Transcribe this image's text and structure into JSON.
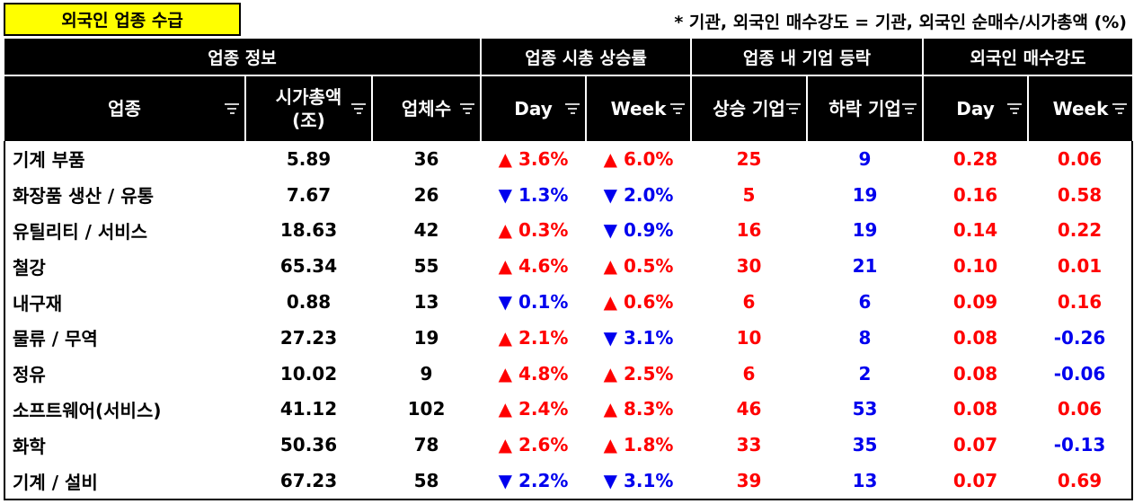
{
  "title": "외국인 업종 수급",
  "note": "* 기관, 외국인 매수강도 = 기관, 외국인 순매수/시가총액 (%)",
  "group_headers": [
    "업종 정보",
    "업종 시총 상승률",
    "업종 내 기업 등락",
    "외국인 매수강도"
  ],
  "column_headers": [
    "업종",
    "시가총액\n(조)",
    "업체수",
    "Day",
    "Week",
    "상승 기업",
    "하락 기업",
    "Day",
    "Week"
  ],
  "up_symbol": "▲",
  "down_symbol": "▼",
  "colors": {
    "up": "#ff0000",
    "down": "#0000ee",
    "title_bg": "#ffff00",
    "header_bg": "#000000"
  },
  "rows": [
    {
      "name": "기계 부품",
      "market_cap": "5.89",
      "count": "36",
      "day": "3.6%",
      "day_dir": "up",
      "week": "6.0%",
      "week_dir": "up",
      "rise": "25",
      "fall": "9",
      "f_day": "0.28",
      "f_week": "0.06"
    },
    {
      "name": "화장품 생산 / 유통",
      "market_cap": "7.67",
      "count": "26",
      "day": "1.3%",
      "day_dir": "down",
      "week": "2.0%",
      "week_dir": "down",
      "rise": "5",
      "fall": "19",
      "f_day": "0.16",
      "f_week": "0.58"
    },
    {
      "name": "유틸리티 / 서비스",
      "market_cap": "18.63",
      "count": "42",
      "day": "0.3%",
      "day_dir": "up",
      "week": "0.9%",
      "week_dir": "down",
      "rise": "16",
      "fall": "19",
      "f_day": "0.14",
      "f_week": "0.22"
    },
    {
      "name": "철강",
      "market_cap": "65.34",
      "count": "55",
      "day": "4.6%",
      "day_dir": "up",
      "week": "0.5%",
      "week_dir": "up",
      "rise": "30",
      "fall": "21",
      "f_day": "0.10",
      "f_week": "0.01"
    },
    {
      "name": "내구재",
      "market_cap": "0.88",
      "count": "13",
      "day": "0.1%",
      "day_dir": "down",
      "week": "0.6%",
      "week_dir": "up",
      "rise": "6",
      "fall": "6",
      "f_day": "0.09",
      "f_week": "0.16"
    },
    {
      "name": "물류 / 무역",
      "market_cap": "27.23",
      "count": "19",
      "day": "2.1%",
      "day_dir": "up",
      "week": "3.1%",
      "week_dir": "down",
      "rise": "10",
      "fall": "8",
      "f_day": "0.08",
      "f_week": "-0.26"
    },
    {
      "name": "정유",
      "market_cap": "10.02",
      "count": "9",
      "day": "4.8%",
      "day_dir": "up",
      "week": "2.5%",
      "week_dir": "up",
      "rise": "6",
      "fall": "2",
      "f_day": "0.08",
      "f_week": "-0.06"
    },
    {
      "name": "소프트웨어(서비스)",
      "market_cap": "41.12",
      "count": "102",
      "day": "2.4%",
      "day_dir": "up",
      "week": "8.3%",
      "week_dir": "up",
      "rise": "46",
      "fall": "53",
      "f_day": "0.08",
      "f_week": "0.06"
    },
    {
      "name": "화학",
      "market_cap": "50.36",
      "count": "78",
      "day": "2.6%",
      "day_dir": "up",
      "week": "1.8%",
      "week_dir": "up",
      "rise": "33",
      "fall": "35",
      "f_day": "0.07",
      "f_week": "-0.13"
    },
    {
      "name": "기계 / 설비",
      "market_cap": "67.23",
      "count": "58",
      "day": "2.2%",
      "day_dir": "down",
      "week": "3.1%",
      "week_dir": "down",
      "rise": "39",
      "fall": "13",
      "f_day": "0.07",
      "f_week": "0.69"
    }
  ]
}
